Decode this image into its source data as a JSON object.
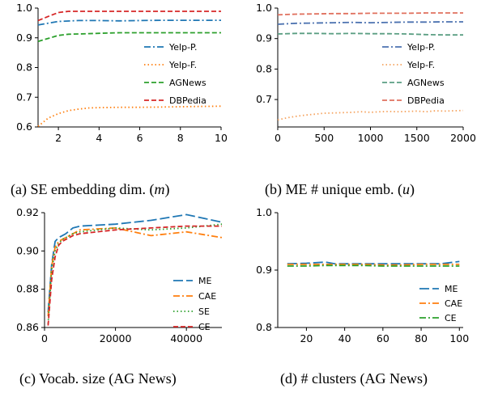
{
  "chart_data": [
    {
      "id": "a",
      "type": "line",
      "caption_prefix": "(a) SE embedding dim. (",
      "caption_var": "m",
      "caption_suffix": ")",
      "xlim": [
        1,
        10
      ],
      "ylim": [
        0.6,
        1.0
      ],
      "xticks": [
        2,
        4,
        6,
        8,
        10
      ],
      "yticks": [
        0.6,
        0.7,
        0.8,
        0.9,
        1.0
      ],
      "xtick_labels": [
        "2",
        "4",
        "6",
        "8",
        "10"
      ],
      "ytick_labels": [
        "0.6",
        "0.7",
        "0.8",
        "0.9",
        "1.0"
      ],
      "legend_position": "right",
      "series": [
        {
          "name": "Yelp-P.",
          "color": "#1f77b4",
          "dash": "dashdot",
          "x": [
            1,
            2,
            3,
            4,
            5,
            6,
            7,
            8,
            9,
            10
          ],
          "y": [
            0.943,
            0.955,
            0.958,
            0.958,
            0.957,
            0.958,
            0.959,
            0.959,
            0.959,
            0.959
          ]
        },
        {
          "name": "Yelp-F.",
          "color": "#ff7f0e",
          "dash": "dotted",
          "x": [
            1,
            1.5,
            2,
            2.5,
            3,
            3.5,
            4,
            5,
            6,
            7,
            8,
            9,
            10
          ],
          "y": [
            0.602,
            0.63,
            0.645,
            0.655,
            0.66,
            0.664,
            0.665,
            0.666,
            0.666,
            0.667,
            0.668,
            0.669,
            0.67
          ]
        },
        {
          "name": "AGNews",
          "color": "#2ca02c",
          "dash": "dashed",
          "x": [
            1,
            1.5,
            2,
            2.5,
            3,
            4,
            5,
            6,
            7,
            8,
            9,
            10
          ],
          "y": [
            0.888,
            0.898,
            0.908,
            0.912,
            0.913,
            0.915,
            0.917,
            0.917,
            0.917,
            0.917,
            0.917,
            0.917
          ]
        },
        {
          "name": "DBPedia",
          "color": "#d62728",
          "dash": "dashed",
          "x": [
            1,
            1.5,
            2,
            2.5,
            3,
            4,
            5,
            6,
            7,
            8,
            9,
            10
          ],
          "y": [
            0.958,
            0.972,
            0.985,
            0.989,
            0.989,
            0.989,
            0.989,
            0.989,
            0.989,
            0.989,
            0.989,
            0.989
          ]
        }
      ]
    },
    {
      "id": "b",
      "type": "line",
      "caption_prefix": "(b) ME # unique emb. (",
      "caption_var": "u",
      "caption_suffix": ")",
      "xlim": [
        0,
        2000
      ],
      "ylim": [
        0.61,
        1.0
      ],
      "xticks": [
        0,
        500,
        1000,
        1500,
        2000
      ],
      "yticks": [
        0.7,
        0.8,
        0.9,
        1.0
      ],
      "xtick_labels": [
        "0",
        "500",
        "1000",
        "1500",
        "2000"
      ],
      "ytick_labels": [
        "0.7",
        "0.8",
        "0.9",
        "1.0"
      ],
      "legend_position": "right",
      "series": [
        {
          "name": "Yelp-P.",
          "color": "#4c72b0",
          "dash": "dashdot",
          "x": [
            0,
            200,
            400,
            600,
            800,
            1000,
            1200,
            1400,
            1600,
            1800,
            2000
          ],
          "y": [
            0.947,
            0.95,
            0.951,
            0.952,
            0.953,
            0.952,
            0.953,
            0.954,
            0.954,
            0.955,
            0.955
          ]
        },
        {
          "name": "Yelp-F.",
          "color": "#f5a25d",
          "dash": "dotted",
          "x": [
            0,
            100,
            200,
            300,
            400,
            500,
            600,
            700,
            800,
            900,
            1000,
            1100,
            1200,
            1300,
            1400,
            1500,
            1600,
            1700,
            1800,
            1900,
            2000
          ],
          "y": [
            0.633,
            0.64,
            0.645,
            0.649,
            0.652,
            0.655,
            0.656,
            0.657,
            0.658,
            0.66,
            0.658,
            0.66,
            0.661,
            0.66,
            0.661,
            0.662,
            0.66,
            0.663,
            0.662,
            0.663,
            0.664
          ]
        },
        {
          "name": "AGNews",
          "color": "#5a9e82",
          "dash": "dashed",
          "x": [
            0,
            200,
            400,
            600,
            800,
            1000,
            1200,
            1400,
            1600,
            1800,
            2000
          ],
          "y": [
            0.915,
            0.917,
            0.917,
            0.916,
            0.917,
            0.916,
            0.916,
            0.915,
            0.913,
            0.912,
            0.912
          ]
        },
        {
          "name": "DBPedia",
          "color": "#e0705e",
          "dash": "dashed",
          "x": [
            0,
            200,
            400,
            600,
            800,
            1000,
            1200,
            1400,
            1600,
            1800,
            2000
          ],
          "y": [
            0.978,
            0.98,
            0.981,
            0.982,
            0.982,
            0.983,
            0.983,
            0.983,
            0.984,
            0.984,
            0.984
          ]
        }
      ]
    },
    {
      "id": "c",
      "type": "line",
      "caption_prefix": "(c) Vocab. size (AG News)",
      "caption_var": "",
      "caption_suffix": "",
      "xlim": [
        0,
        50000
      ],
      "ylim": [
        0.86,
        0.92
      ],
      "xticks": [
        0,
        20000,
        40000
      ],
      "yticks": [
        0.86,
        0.88,
        0.9,
        0.92
      ],
      "xtick_labels": [
        "0",
        "20000",
        "40000"
      ],
      "ytick_labels": [
        "0.86",
        "0.88",
        "0.90",
        "0.92"
      ],
      "legend_position": "lower right",
      "series": [
        {
          "name": "ME",
          "color": "#1f77b4",
          "dash": "longdash",
          "x": [
            1000,
            2000,
            3000,
            4000,
            5000,
            6000,
            8000,
            10000,
            20000,
            30000,
            40000,
            50000
          ],
          "y": [
            0.868,
            0.893,
            0.905,
            0.907,
            0.908,
            0.909,
            0.912,
            0.913,
            0.914,
            0.916,
            0.919,
            0.915
          ]
        },
        {
          "name": "CAE",
          "color": "#ff7f0e",
          "dash": "dashdot",
          "x": [
            1000,
            2000,
            3000,
            4000,
            5000,
            6000,
            8000,
            10000,
            20000,
            30000,
            40000,
            50000
          ],
          "y": [
            0.866,
            0.892,
            0.902,
            0.905,
            0.906,
            0.907,
            0.909,
            0.911,
            0.912,
            0.908,
            0.91,
            0.907
          ]
        },
        {
          "name": "SE",
          "color": "#2ca02c",
          "dash": "dotted",
          "x": [
            1000,
            2000,
            3000,
            4000,
            5000,
            6000,
            8000,
            10000,
            20000,
            30000,
            40000,
            50000
          ],
          "y": [
            0.862,
            0.89,
            0.9,
            0.904,
            0.906,
            0.907,
            0.909,
            0.91,
            0.912,
            0.911,
            0.912,
            0.914
          ]
        },
        {
          "name": "CE",
          "color": "#d62728",
          "dash": "dashed",
          "x": [
            1000,
            2000,
            3000,
            4000,
            5000,
            6000,
            8000,
            10000,
            20000,
            30000,
            40000,
            50000
          ],
          "y": [
            0.861,
            0.885,
            0.897,
            0.903,
            0.905,
            0.906,
            0.908,
            0.909,
            0.911,
            0.912,
            0.913,
            0.913
          ]
        }
      ]
    },
    {
      "id": "d",
      "type": "line",
      "caption_prefix": "(d) # clusters (AG News)",
      "caption_var": "",
      "caption_suffix": "",
      "xlim": [
        5,
        102
      ],
      "ylim": [
        0.8,
        1.0
      ],
      "xticks": [
        20,
        40,
        60,
        80,
        100
      ],
      "yticks": [
        0.8,
        0.9,
        1.0
      ],
      "xtick_labels": [
        "20",
        "40",
        "60",
        "80",
        "100"
      ],
      "ytick_labels": [
        "0.8",
        "0.9",
        "1.0"
      ],
      "legend_position": "lower right",
      "series": [
        {
          "name": "ME",
          "color": "#1f77b4",
          "dash": "longdash",
          "x": [
            10,
            20,
            30,
            35,
            40,
            50,
            60,
            70,
            80,
            90,
            100
          ],
          "y": [
            0.911,
            0.912,
            0.914,
            0.911,
            0.911,
            0.911,
            0.911,
            0.911,
            0.911,
            0.911,
            0.915
          ]
        },
        {
          "name": "CAE",
          "color": "#ff7f0e",
          "dash": "dashdot",
          "x": [
            10,
            20,
            30,
            40,
            50,
            60,
            70,
            80,
            90,
            100
          ],
          "y": [
            0.91,
            0.91,
            0.91,
            0.91,
            0.91,
            0.909,
            0.909,
            0.91,
            0.91,
            0.91
          ]
        },
        {
          "name": "CE",
          "color": "#2ca02c",
          "dash": "dashdot",
          "x": [
            10,
            20,
            30,
            40,
            50,
            60,
            70,
            80,
            90,
            100
          ],
          "y": [
            0.907,
            0.907,
            0.908,
            0.908,
            0.908,
            0.907,
            0.907,
            0.907,
            0.907,
            0.907
          ]
        }
      ]
    }
  ]
}
